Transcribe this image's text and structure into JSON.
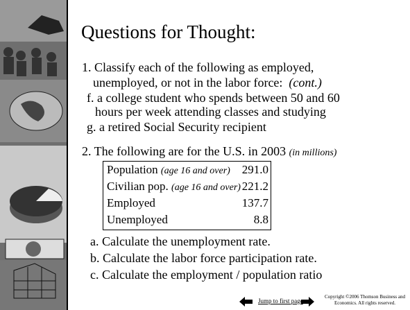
{
  "title": "Questions for Thought:",
  "question_1": {
    "lines": [
      "1. Classify each of the following as employed,",
      "unemployed, or not in the labor force:"
    ],
    "note": "(cont.)",
    "items": [
      {
        "lines": [
          "f. a college student who spends between 50 and 60",
          "hours per week attending classes and studying"
        ]
      },
      {
        "lines": [
          "g. a retired Social Security recipient"
        ]
      }
    ]
  },
  "question_2": {
    "text": "2. The following are for the U.S. in 2003",
    "note": "(in millions)",
    "table": {
      "rows": [
        {
          "label": "Population",
          "qualifier": "(age 16 and over)",
          "value": "291.0"
        },
        {
          "label": "Civilian pop.",
          "qualifier": "(age 16 and over)",
          "value": "221.2"
        },
        {
          "label": "Employed",
          "value": "137.7"
        },
        {
          "label": "Unemployed",
          "value": "8.8"
        }
      ]
    },
    "items": [
      "a. Calculate the unemployment rate.",
      "b. Calculate the labor force participation rate.",
      "c. Calculate the employment / population ratio"
    ]
  },
  "footer": {
    "link": "Jump to first page",
    "copyright": [
      "Copyright ©2006  Thomson Business and",
      "Economics. All rights reserved."
    ]
  }
}
